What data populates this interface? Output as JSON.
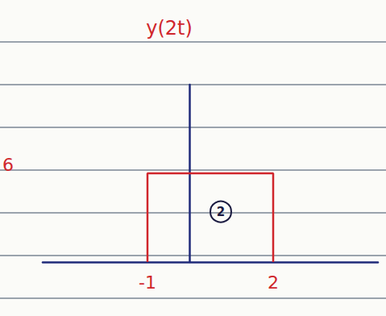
{
  "chart_data": {
    "type": "line",
    "title": "y(2t)",
    "x": [
      -1,
      -1,
      2,
      2
    ],
    "values": [
      0,
      6,
      6,
      0
    ],
    "color": "#d0262c",
    "xlim": [
      -3.5,
      4.5
    ],
    "xticks": [
      -1,
      2
    ],
    "ylim": [
      0,
      12
    ],
    "yticks": [
      6
    ],
    "grid": false,
    "annotations": [
      {
        "text": "2",
        "x": 0.75,
        "y": 3.4
      }
    ]
  }
}
